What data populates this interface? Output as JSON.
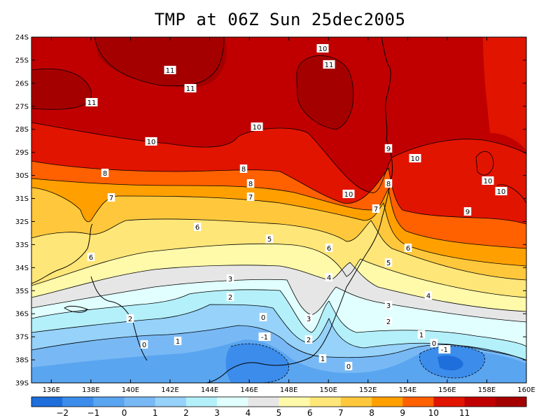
{
  "title": "TMP at 06Z Sun 25dec2005",
  "lat_labels": [
    "24S",
    "25S",
    "26S",
    "27S",
    "28S",
    "29S",
    "30S",
    "31S",
    "32S",
    "33S",
    "34S",
    "35S",
    "36S",
    "37S",
    "38S",
    "39S"
  ],
  "lon_labels": [
    "136E",
    "138E",
    "140E",
    "142E",
    "144E",
    "146E",
    "148E",
    "150E",
    "152E",
    "154E",
    "156E",
    "158E",
    "160E"
  ],
  "colorbar": {
    "labels": [
      "-2",
      "-1",
      "0",
      "1",
      "2",
      "3",
      "4",
      "5",
      "6",
      "7",
      "8",
      "9",
      "10",
      "11"
    ],
    "colors": [
      "#1e6edc",
      "#3c8ceb",
      "#5aa5f0",
      "#78b9f5",
      "#96d2fa",
      "#b4f0fa",
      "#e1ffff",
      "#e6e6e6",
      "#fffaaa",
      "#ffe678",
      "#ffc83c",
      "#ffa000",
      "#ff6000",
      "#e11400",
      "#c00000",
      "#a50000"
    ]
  },
  "contour_labels": [
    {
      "text": "10"
    },
    {
      "text": "11"
    },
    {
      "text": "11"
    },
    {
      "text": "11"
    },
    {
      "text": "11"
    },
    {
      "text": "10"
    },
    {
      "text": "10"
    },
    {
      "text": "9"
    },
    {
      "text": "10"
    },
    {
      "text": "10"
    },
    {
      "text": "10"
    },
    {
      "text": "10"
    },
    {
      "text": "9"
    },
    {
      "text": "8"
    },
    {
      "text": "8"
    },
    {
      "text": "8"
    },
    {
      "text": "8"
    },
    {
      "text": "7"
    },
    {
      "text": "7"
    },
    {
      "text": "7"
    },
    {
      "text": "6"
    },
    {
      "text": "6"
    },
    {
      "text": "6"
    },
    {
      "text": "6"
    },
    {
      "text": "5"
    },
    {
      "text": "5"
    },
    {
      "text": "4"
    },
    {
      "text": "4"
    },
    {
      "text": "3"
    },
    {
      "text": "3"
    },
    {
      "text": "3"
    },
    {
      "text": "2"
    },
    {
      "text": "2"
    },
    {
      "text": "2"
    },
    {
      "text": "2"
    },
    {
      "text": "1"
    },
    {
      "text": "1"
    },
    {
      "text": "1"
    },
    {
      "text": "0"
    },
    {
      "text": "0"
    },
    {
      "text": "0"
    },
    {
      "text": "0"
    },
    {
      "text": "-1"
    },
    {
      "text": "-1"
    }
  ]
}
